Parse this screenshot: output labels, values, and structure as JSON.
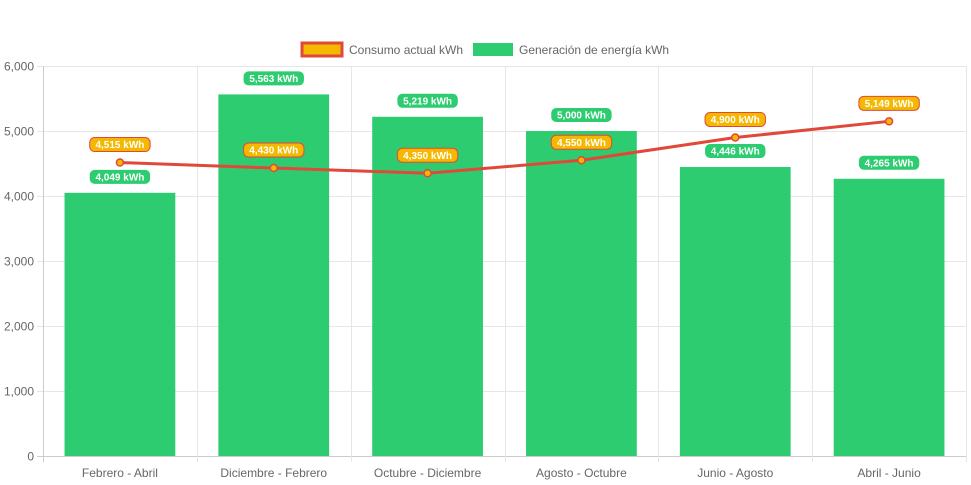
{
  "chart_data": {
    "type": "bar",
    "categories": [
      "Febrero - Abril",
      "Diciembre - Febrero",
      "Octubre - Diciembre",
      "Agosto - Octubre",
      "Junio - Agosto",
      "Abril - Junio"
    ],
    "series": [
      {
        "name": "Consumo actual kWh",
        "type": "line",
        "values": [
          4515,
          4430,
          4350,
          4550,
          4900,
          5149
        ],
        "labels": [
          "4,515 kWh",
          "4,430 kWh",
          "4,350 kWh",
          "4,550 kWh",
          "4,900 kWh",
          "5,149 kWh"
        ],
        "color": "#e0493a",
        "label_color": "#f5b800"
      },
      {
        "name": "Generación de energía kWh",
        "type": "bar",
        "values": [
          4049,
          5563,
          5219,
          5000,
          4446,
          4265
        ],
        "labels": [
          "4,049 kWh",
          "5,563 kWh",
          "5,219 kWh",
          "5,000 kWh",
          "4,446 kWh",
          "4,265 kWh"
        ],
        "color": "#2ecc71"
      }
    ],
    "ylim": [
      0,
      6000
    ],
    "yticks": [
      0,
      1000,
      2000,
      3000,
      4000,
      5000,
      6000
    ],
    "ytick_labels": [
      "0",
      "1,000",
      "2,000",
      "3,000",
      "4,000",
      "5,000",
      "6,000"
    ],
    "grid": true,
    "legend_position": "top-center"
  }
}
